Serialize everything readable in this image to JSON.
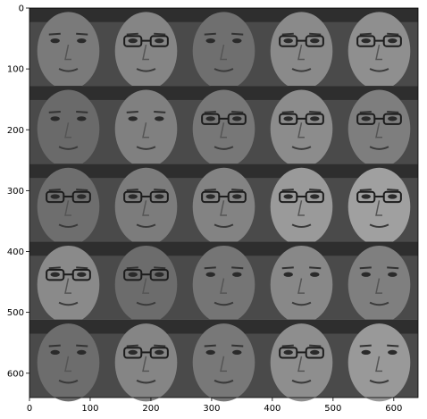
{
  "figure": {
    "x_ticks": [
      "0",
      "100",
      "200",
      "300",
      "400",
      "500",
      "600"
    ],
    "y_ticks": [
      "0",
      "100",
      "200",
      "300",
      "400",
      "500",
      "600"
    ],
    "x_range": [
      0,
      640
    ],
    "y_range": [
      640,
      0
    ],
    "grid": {
      "rows": 5,
      "cols": 5
    },
    "tiles": [
      {
        "row": 0,
        "col": 0,
        "glasses": false,
        "tone": "#7a7a7a"
      },
      {
        "row": 0,
        "col": 1,
        "glasses": true,
        "tone": "#858585"
      },
      {
        "row": 0,
        "col": 2,
        "glasses": false,
        "tone": "#6f6f6f"
      },
      {
        "row": 0,
        "col": 3,
        "glasses": true,
        "tone": "#8a8a8a"
      },
      {
        "row": 0,
        "col": 4,
        "glasses": true,
        "tone": "#8f8f8f"
      },
      {
        "row": 1,
        "col": 0,
        "glasses": false,
        "tone": "#6a6a6a"
      },
      {
        "row": 1,
        "col": 1,
        "glasses": false,
        "tone": "#808080"
      },
      {
        "row": 1,
        "col": 2,
        "glasses": true,
        "tone": "#777777"
      },
      {
        "row": 1,
        "col": 3,
        "glasses": true,
        "tone": "#8c8c8c"
      },
      {
        "row": 1,
        "col": 4,
        "glasses": true,
        "tone": "#7e7e7e"
      },
      {
        "row": 2,
        "col": 0,
        "glasses": true,
        "tone": "#6e6e6e"
      },
      {
        "row": 2,
        "col": 1,
        "glasses": true,
        "tone": "#7c7c7c"
      },
      {
        "row": 2,
        "col": 2,
        "glasses": true,
        "tone": "#838383"
      },
      {
        "row": 2,
        "col": 3,
        "glasses": true,
        "tone": "#9a9a9a"
      },
      {
        "row": 2,
        "col": 4,
        "glasses": true,
        "tone": "#a0a0a0"
      },
      {
        "row": 3,
        "col": 0,
        "glasses": true,
        "tone": "#8a8a8a"
      },
      {
        "row": 3,
        "col": 1,
        "glasses": true,
        "tone": "#6c6c6c"
      },
      {
        "row": 3,
        "col": 2,
        "glasses": false,
        "tone": "#757575"
      },
      {
        "row": 3,
        "col": 3,
        "glasses": false,
        "tone": "#888888"
      },
      {
        "row": 3,
        "col": 4,
        "glasses": false,
        "tone": "#7f7f7f"
      },
      {
        "row": 4,
        "col": 0,
        "glasses": false,
        "tone": "#6d6d6d"
      },
      {
        "row": 4,
        "col": 1,
        "glasses": true,
        "tone": "#858585"
      },
      {
        "row": 4,
        "col": 2,
        "glasses": false,
        "tone": "#787878"
      },
      {
        "row": 4,
        "col": 3,
        "glasses": true,
        "tone": "#8e8e8e"
      },
      {
        "row": 4,
        "col": 4,
        "glasses": false,
        "tone": "#999999"
      }
    ]
  }
}
